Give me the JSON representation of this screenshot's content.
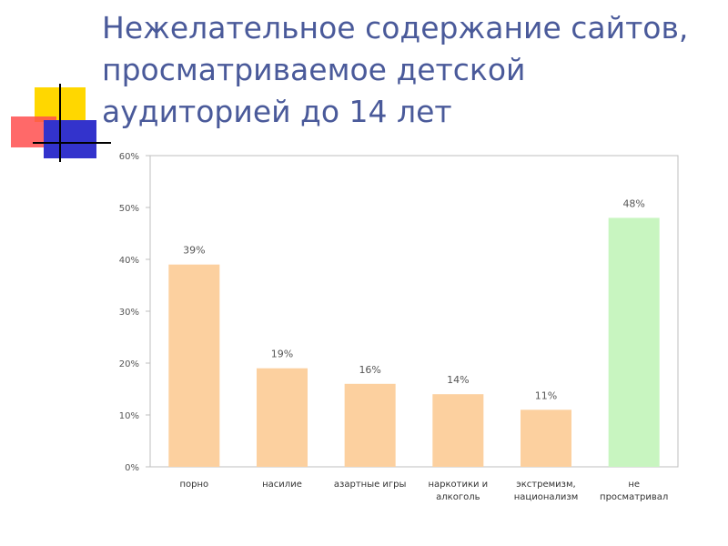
{
  "slide": {
    "title": "Нежелательное содержание сайтов, просматриваемое детской аудиторией до 14 лет"
  },
  "colors": {
    "title": "#4a5a9a",
    "bar": "#fcd09f",
    "highlight_bar": "#c8f5c0",
    "deco_yellow": "#ffd700",
    "deco_red": "#ff4f4f",
    "deco_blue": "#3333cc"
  },
  "chart_data": {
    "type": "bar",
    "categories": [
      [
        "порно"
      ],
      [
        "насилие"
      ],
      [
        "азартные игры"
      ],
      [
        "наркотики и",
        "алкоголь"
      ],
      [
        "экстремизм,",
        "национализм"
      ],
      [
        "не",
        "просматривал"
      ]
    ],
    "values": [
      39,
      19,
      16,
      14,
      11,
      48
    ],
    "data_labels": [
      "39%",
      "19%",
      "16%",
      "14%",
      "11%",
      "48%"
    ],
    "highlight_index": 5,
    "ylim": [
      0,
      60
    ],
    "yticks": [
      0,
      10,
      20,
      30,
      40,
      50,
      60
    ],
    "ytick_labels": [
      "0%",
      "10%",
      "20%",
      "30%",
      "40%",
      "50%",
      "60%"
    ],
    "title": "",
    "xlabel": "",
    "ylabel": "",
    "grid": false,
    "legend": "none"
  }
}
